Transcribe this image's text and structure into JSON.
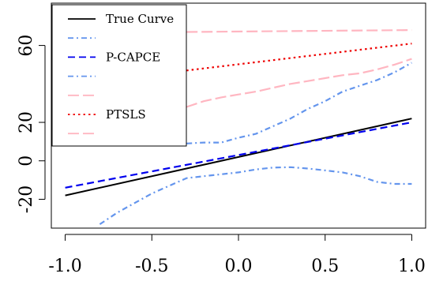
{
  "chart_data": {
    "type": "line",
    "title": "",
    "xlabel": "",
    "ylabel": "",
    "xlim": [
      -1.08,
      1.08
    ],
    "ylim": [
      -35,
      82
    ],
    "x_ticks": [
      -1.0,
      -0.5,
      0.0,
      0.5,
      1.0
    ],
    "x_tick_labels": [
      "-1.0",
      "-0.5",
      "0.0",
      "0.5",
      "1.0"
    ],
    "y_ticks": [
      -20,
      0,
      20,
      60
    ],
    "y_tick_labels": [
      "-20",
      "0",
      "20",
      "60"
    ],
    "grid": false,
    "legend_position": "top-left",
    "legend": [
      {
        "label": "True Curve",
        "color": "#000000",
        "dash": "solid"
      },
      {
        "label": "",
        "color": "#6495ED",
        "dash": "dashdot"
      },
      {
        "label": "P-CAPCE",
        "color": "#0000EE",
        "dash": "dashed"
      },
      {
        "label": "",
        "color": "#6495ED",
        "dash": "dashdot"
      },
      {
        "label": "",
        "color": "#FFB6C1",
        "dash": "longdash"
      },
      {
        "label": "PTSLS",
        "color": "#EE0000",
        "dash": "dotted"
      },
      {
        "label": "",
        "color": "#FFB6C1",
        "dash": "longdash"
      }
    ],
    "series": [
      {
        "name": "True Curve",
        "color": "#000000",
        "dash": "solid",
        "x": [
          -1.0,
          1.0
        ],
        "y": [
          -18,
          22
        ]
      },
      {
        "name": "P-CAPCE",
        "color": "#0000EE",
        "dash": "dashed",
        "x": [
          -1.0,
          1.0
        ],
        "y": [
          -14,
          20
        ]
      },
      {
        "color": "#6495ED",
        "dash": "dashdot",
        "x": [
          -0.8,
          -0.7,
          -0.6,
          -0.5,
          -0.4,
          -0.3,
          -0.2,
          -0.1,
          0.0,
          0.1,
          0.2,
          0.3,
          0.4,
          0.5,
          0.6,
          0.7,
          0.8,
          0.9,
          1.0
        ],
        "y": [
          -33,
          -27,
          -22,
          -17,
          -13,
          -9,
          -8,
          -7,
          -6,
          -4.5,
          -3.5,
          -3.3,
          -4,
          -5,
          -6,
          -8,
          -11,
          -12,
          -12
        ]
      },
      {
        "color": "#6495ED",
        "dash": "dashdot",
        "x": [
          -0.3,
          -0.2,
          -0.1,
          0.0,
          0.1,
          0.2,
          0.3,
          0.4,
          0.5,
          0.6,
          0.7,
          0.8,
          0.9,
          1.0
        ],
        "y": [
          9,
          9.5,
          9.5,
          12,
          14,
          18,
          22,
          27,
          31,
          36,
          39,
          42,
          46,
          51
        ]
      },
      {
        "name": "PTSLS",
        "color": "#EE0000",
        "dash": "dotted",
        "x": [
          -0.3,
          1.0
        ],
        "y": [
          47,
          61
        ]
      },
      {
        "color": "#FFB6C1",
        "dash": "longdash",
        "x": [
          -0.3,
          1.0
        ],
        "y": [
          67,
          68
        ]
      },
      {
        "color": "#FFB6C1",
        "dash": "longdash",
        "x": [
          -0.3,
          -0.2,
          -0.1,
          0.0,
          0.1,
          0.2,
          0.3,
          0.4,
          0.5,
          0.6,
          0.7,
          0.8,
          0.9,
          1.0
        ],
        "y": [
          28,
          31,
          33,
          34.5,
          36,
          38,
          40,
          41.5,
          43,
          44.5,
          45.5,
          47.5,
          50,
          53
        ]
      }
    ]
  }
}
